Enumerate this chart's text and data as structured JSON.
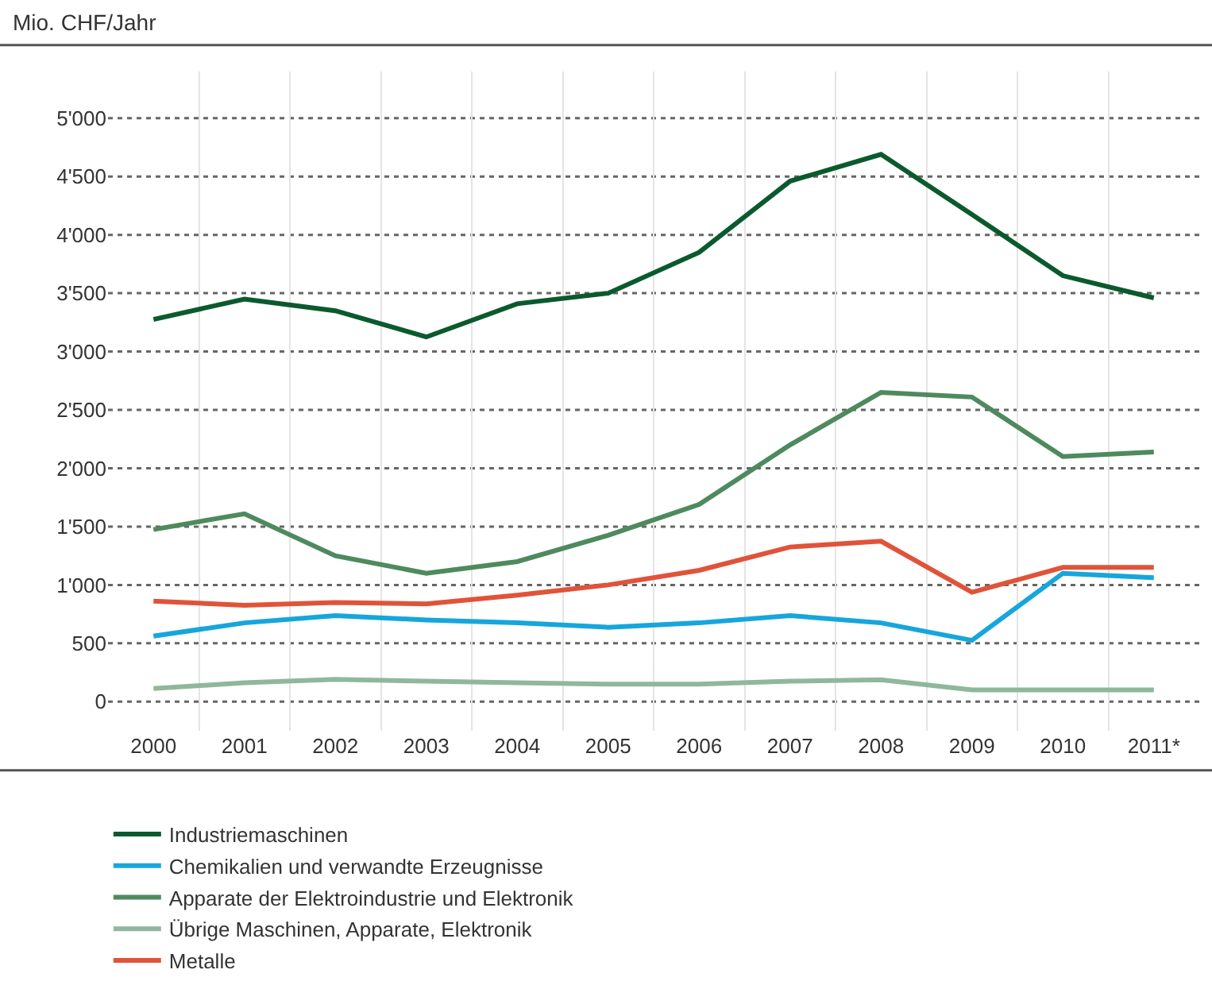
{
  "chart_data": {
    "type": "line",
    "ylabel": "Mio. CHF/Jahr",
    "categories": [
      "2000",
      "2001",
      "2002",
      "2003",
      "2004",
      "2005",
      "2006",
      "2007",
      "2008",
      "2009",
      "2010",
      "2011*"
    ],
    "series": [
      {
        "name": "Industriemaschinen",
        "color": "#0b5a2e",
        "values": [
          3275,
          3450,
          3350,
          3125,
          3410,
          3500,
          3850,
          4460,
          4690,
          4175,
          3650,
          3460
        ]
      },
      {
        "name": "Apparate der Elektroindustrie und Elektronik",
        "color": "#4e8a5e",
        "values": [
          1475,
          1610,
          1250,
          1100,
          1200,
          1425,
          1690,
          2200,
          2650,
          2610,
          2100,
          2140
        ]
      },
      {
        "name": "Metalle",
        "color": "#e0533a",
        "values": [
          862,
          825,
          850,
          837,
          912,
          1000,
          1125,
          1325,
          1375,
          937,
          1150,
          1150
        ]
      },
      {
        "name": "Chemikalien und verwandte Erzeugnisse",
        "color": "#16a6dc",
        "values": [
          562,
          675,
          737,
          700,
          675,
          637,
          675,
          737,
          675,
          525,
          1100,
          1062
        ]
      },
      {
        "name": "Übrige Maschinen, Apparate, Elektronik",
        "color": "#8fb89a",
        "values": [
          112,
          162,
          190,
          175,
          162,
          150,
          150,
          175,
          187,
          100,
          100,
          100
        ]
      }
    ],
    "ylim": [
      -250,
      5400
    ],
    "yticks": [
      0,
      500,
      {
        "value": 1000,
        "label": "1'000"
      },
      {
        "value": 1500,
        "label": "1'500"
      },
      {
        "value": 2000,
        "label": "2'000"
      },
      {
        "value": 2500,
        "label": "2'500"
      },
      {
        "value": 3000,
        "label": "3'000"
      },
      {
        "value": 3500,
        "label": "3'500"
      },
      {
        "value": 4000,
        "label": "4'000"
      },
      {
        "value": 4500,
        "label": "4'500"
      },
      {
        "value": 5000,
        "label": "5'000"
      }
    ],
    "grid": true,
    "legend": "bottom",
    "marker": "none",
    "line_style": "solid"
  }
}
